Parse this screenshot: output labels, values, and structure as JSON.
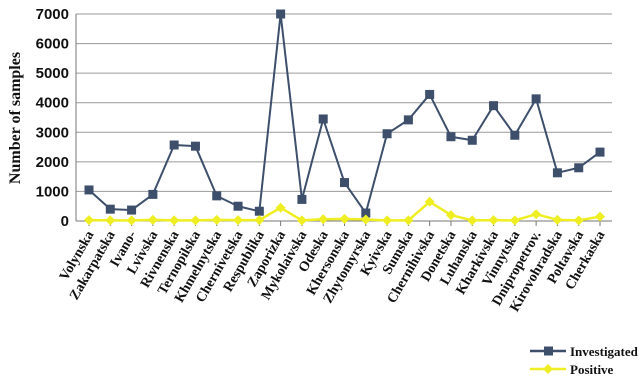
{
  "chart_data": {
    "type": "line",
    "title": "",
    "xlabel": "",
    "ylabel": "Number of samples",
    "ylim": [
      0,
      7000
    ],
    "yticks": [
      0,
      1000,
      2000,
      3000,
      4000,
      5000,
      6000,
      7000
    ],
    "grid": "horizontal",
    "legend_position": "bottom-right",
    "categories": [
      "Volynska",
      "Zakarpatska",
      "Ivano-",
      "Lvivska",
      "Rivnenska",
      "Ternopilska",
      "Khmelnytska",
      "Chernivetska",
      "Respublika",
      "Zaporizka",
      "Mykolaivska",
      "Odeska",
      "Khersonska",
      "Zhytomyrska",
      "Kyivska",
      "Sumska",
      "Chernihivska",
      "Donetska",
      "Luhanska",
      "Kharkivska",
      "Vinnytska",
      "Dnipropetrov.",
      "Kirovohradska",
      "Poltavska",
      "Cherkaska"
    ],
    "series": [
      {
        "name": "Investigated",
        "color": "#3d4f6b",
        "marker": "square",
        "values": [
          1050,
          400,
          370,
          900,
          2570,
          2530,
          850,
          500,
          330,
          7000,
          730,
          3450,
          1300,
          270,
          2950,
          3420,
          4280,
          2850,
          2730,
          3900,
          2900,
          4130,
          1630,
          1800,
          2330
        ]
      },
      {
        "name": "Positive",
        "color": "#eeee22",
        "marker": "diamond",
        "values": [
          30,
          20,
          20,
          40,
          20,
          20,
          40,
          30,
          30,
          450,
          20,
          60,
          70,
          50,
          20,
          20,
          650,
          200,
          20,
          30,
          20,
          230,
          40,
          20,
          150
        ]
      }
    ]
  }
}
